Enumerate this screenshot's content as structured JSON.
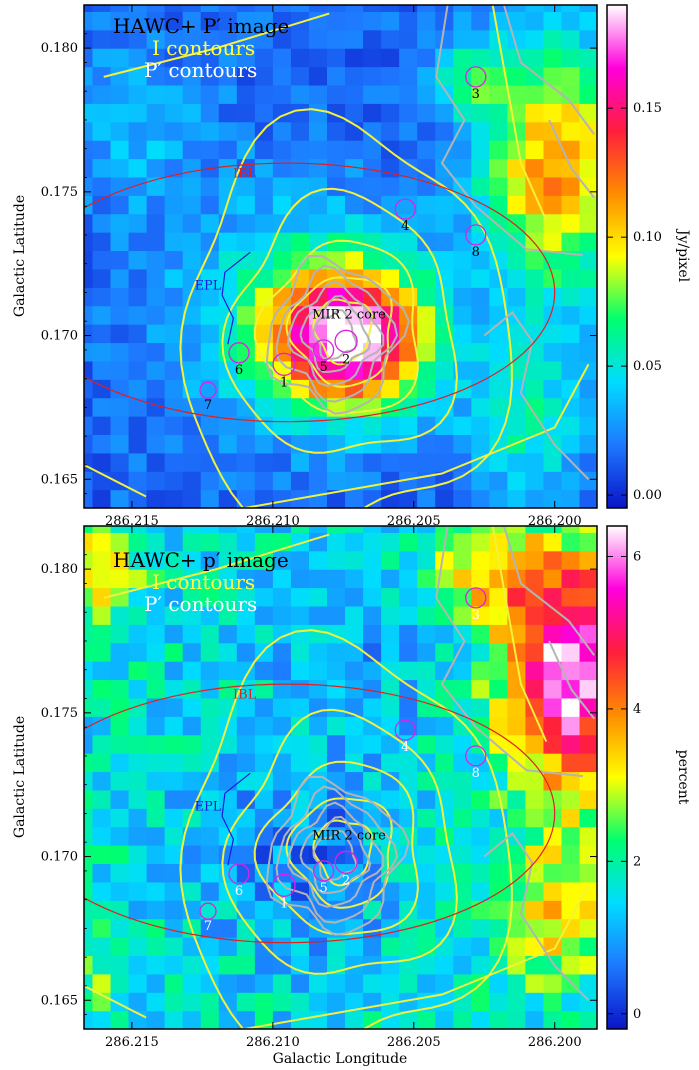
{
  "chart_data": [
    {
      "type": "heatmap",
      "panel": "top",
      "legend": [
        "HAWC+ P′ image",
        "I contours",
        "P′ contours"
      ],
      "legend_colors": [
        "#000000",
        "#ffff40",
        "#ffffff"
      ],
      "ylabel": "Galactic Latitude",
      "xlabel": "",
      "x_reversed": true,
      "xlim": [
        286.2167,
        286.1985
      ],
      "ylim": [
        0.164,
        0.1815
      ],
      "x_ticks": [
        "286.215",
        "286.210",
        "286.205",
        "286.200"
      ],
      "y_ticks": [
        "0.165",
        "0.170",
        "0.175",
        "0.180"
      ],
      "colorbar": {
        "label": "Jy/pixel",
        "range": [
          -0.005,
          0.19
        ],
        "ticks": [
          "0.00",
          "0.05",
          "0.10",
          "0.15"
        ],
        "colormap": [
          "#0a14c8",
          "#1e78ff",
          "#00dcff",
          "#00ff70",
          "#ffff00",
          "#ff8c00",
          "#ff1e3c",
          "#ff00dc",
          "#ffffff"
        ]
      },
      "field": "intensity",
      "region_labels": {
        "ibl": "IBL",
        "epl": "EPL",
        "core": "MIR 2 core"
      },
      "region_colors": {
        "ibl": "#e02020",
        "epl": "#1a1adc",
        "core": "#000000"
      },
      "sources": [
        {
          "id": "1",
          "l": 286.2096,
          "b": 0.169
        },
        {
          "id": "2",
          "l": 286.2074,
          "b": 0.1698
        },
        {
          "id": "3",
          "l": 286.2028,
          "b": 0.179
        },
        {
          "id": "4",
          "l": 286.2053,
          "b": 0.1744
        },
        {
          "id": "5",
          "l": 286.2082,
          "b": 0.1695
        },
        {
          "id": "6",
          "l": 286.2112,
          "b": 0.1694
        },
        {
          "id": "7",
          "l": 286.2123,
          "b": 0.1681
        },
        {
          "id": "8",
          "l": 286.2028,
          "b": 0.1735
        }
      ],
      "source_label_color": "#000000"
    },
    {
      "type": "heatmap",
      "panel": "bottom",
      "legend": [
        "HAWC+ p′ image",
        "I contours",
        "P′ contours"
      ],
      "legend_colors": [
        "#000000",
        "#ffff40",
        "#ffffff"
      ],
      "ylabel": "Galactic Latitude",
      "xlabel": "Galactic Longitude",
      "x_reversed": true,
      "xlim": [
        286.2167,
        286.1985
      ],
      "ylim": [
        0.164,
        0.1815
      ],
      "x_ticks": [
        "286.215",
        "286.210",
        "286.205",
        "286.200"
      ],
      "y_ticks": [
        "0.165",
        "0.170",
        "0.175",
        "0.180"
      ],
      "colorbar": {
        "label": "percent",
        "range": [
          -0.2,
          6.4
        ],
        "ticks": [
          "0",
          "2",
          "4",
          "6"
        ],
        "colormap": [
          "#0a14c8",
          "#1e78ff",
          "#00dcff",
          "#00ff70",
          "#ffff00",
          "#ff8c00",
          "#ff1e3c",
          "#ff00dc",
          "#ffffff"
        ]
      },
      "field": "polarization_percent",
      "region_labels": {
        "ibl": "IBL",
        "epl": "EPL",
        "core": "MIR 2 core"
      },
      "region_colors": {
        "ibl": "#e02020",
        "epl": "#1a1adc",
        "core": "#000000"
      },
      "sources": [
        {
          "id": "1",
          "l": 286.2096,
          "b": 0.169
        },
        {
          "id": "2",
          "l": 286.2074,
          "b": 0.1698
        },
        {
          "id": "3",
          "l": 286.2028,
          "b": 0.179
        },
        {
          "id": "4",
          "l": 286.2053,
          "b": 0.1744
        },
        {
          "id": "5",
          "l": 286.2082,
          "b": 0.1695
        },
        {
          "id": "6",
          "l": 286.2112,
          "b": 0.1694
        },
        {
          "id": "7",
          "l": 286.2123,
          "b": 0.1681
        },
        {
          "id": "8",
          "l": 286.2028,
          "b": 0.1735
        }
      ],
      "source_label_color": "#ffffff"
    }
  ]
}
